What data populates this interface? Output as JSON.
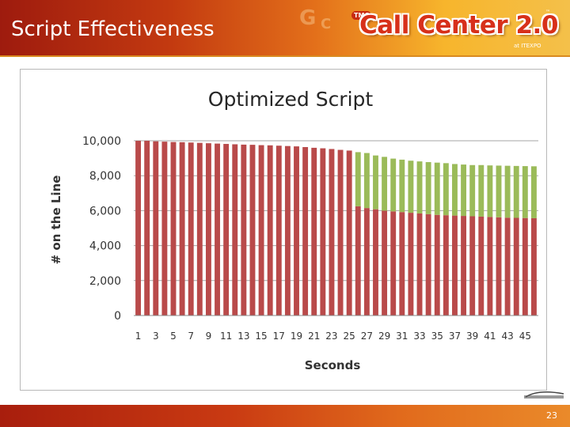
{
  "slide": {
    "title": "Script Effectiveness",
    "page_number": "23"
  },
  "logo": {
    "badge": "TMC",
    "text": "Call Center 2.0",
    "tm": "™",
    "subtitle": "at ITEXPO"
  },
  "colors": {
    "base_series": "#b94a4a",
    "gain_series": "#9bbb59"
  },
  "chart_data": {
    "type": "bar",
    "stacked": true,
    "title": "Optimized Script",
    "xlabel": "Seconds",
    "ylabel": "# on the Line",
    "ylim": [
      0,
      10500
    ],
    "yticks": [
      0,
      2000,
      4000,
      6000,
      8000,
      10000
    ],
    "ytick_labels": [
      "0",
      "2,000",
      "4,000",
      "6,000",
      "8,000",
      "10,000"
    ],
    "categories": [
      1,
      2,
      3,
      4,
      5,
      6,
      7,
      8,
      9,
      10,
      11,
      12,
      13,
      14,
      15,
      16,
      17,
      18,
      19,
      20,
      21,
      22,
      23,
      24,
      25,
      26,
      27,
      28,
      29,
      30,
      31,
      32,
      33,
      34,
      35,
      36,
      37,
      38,
      39,
      40,
      41,
      42,
      43,
      44,
      45,
      46
    ],
    "xtick_labels": [
      "1",
      "3",
      "5",
      "7",
      "9",
      "11",
      "13",
      "15",
      "17",
      "19",
      "21",
      "23",
      "25",
      "27",
      "29",
      "31",
      "33",
      "35",
      "37",
      "39",
      "41",
      "43",
      "45"
    ],
    "grid": true,
    "legend": "none",
    "series": [
      {
        "values": [
          10000,
          10000,
          9970,
          9950,
          9930,
          9920,
          9900,
          9880,
          9860,
          9840,
          9820,
          9800,
          9780,
          9770,
          9750,
          9740,
          9720,
          9700,
          9680,
          9640,
          9600,
          9570,
          9530,
          9480,
          9440,
          6250,
          6150,
          6080,
          6000,
          5960,
          5920,
          5880,
          5840,
          5800,
          5760,
          5740,
          5720,
          5700,
          5680,
          5660,
          5640,
          5620,
          5600,
          5590,
          5580,
          5570
        ]
      },
      {
        "values": [
          0,
          0,
          0,
          0,
          0,
          0,
          0,
          0,
          0,
          0,
          0,
          0,
          0,
          0,
          0,
          0,
          0,
          0,
          0,
          0,
          0,
          0,
          0,
          0,
          0,
          3100,
          3150,
          3080,
          3080,
          3020,
          3000,
          2980,
          2980,
          2980,
          2990,
          2980,
          2950,
          2940,
          2930,
          2950,
          2950,
          2960,
          2970,
          2970,
          2970,
          2970
        ]
      }
    ]
  }
}
